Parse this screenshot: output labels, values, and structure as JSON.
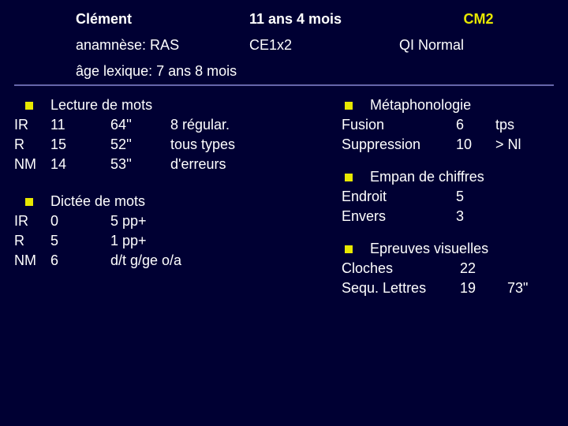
{
  "colors": {
    "background": "#000033",
    "text": "#ffffff",
    "accent": "#e8e800",
    "divider": "#6666aa"
  },
  "header": {
    "name": "Clément",
    "age": "11 ans 4 mois",
    "grade": "CM2"
  },
  "subheader": {
    "anamnese_label": "anamnèse: RAS",
    "redouble": "CE1x2",
    "qi": "QI Normal"
  },
  "age_lexique": "âge lexique: 7 ans 8 mois",
  "lecture": {
    "title": "Lecture de mots",
    "rows": {
      "ir": {
        "label": "IR",
        "score": "11",
        "time": "64''",
        "note": "8 régular."
      },
      "r": {
        "label": "R",
        "score": "15",
        "time": "52''",
        "note": "tous types"
      },
      "nm": {
        "label": "NM",
        "score": "14",
        "time": "53''",
        "note": "d'erreurs"
      }
    }
  },
  "dictee": {
    "title": "Dictée de mots",
    "rows": {
      "ir": {
        "label": "IR",
        "score": "0",
        "note": "5 pp+"
      },
      "r": {
        "label": "R",
        "score": "5",
        "note": "1 pp+"
      },
      "nm": {
        "label": "NM",
        "score": "6",
        "note": "d/t g/ge o/a"
      }
    }
  },
  "metaphono": {
    "title": "Métaphonologie",
    "rows": {
      "fusion": {
        "label": "Fusion",
        "score": "6",
        "note": "tps"
      },
      "suppression": {
        "label": "Suppression",
        "score": "10",
        "note": "> Nl"
      }
    }
  },
  "empan": {
    "title": "Empan de chiffres",
    "rows": {
      "endroit": {
        "label": "Endroit",
        "score": "5"
      },
      "envers": {
        "label": "Envers",
        "score": "3"
      }
    }
  },
  "visuelles": {
    "title": "Epreuves visuelles",
    "rows": {
      "cloches": {
        "label": "Cloches",
        "score": "22",
        "time": ""
      },
      "sequ": {
        "label": "Sequ. Lettres",
        "score": "19",
        "time": "73\""
      }
    }
  }
}
